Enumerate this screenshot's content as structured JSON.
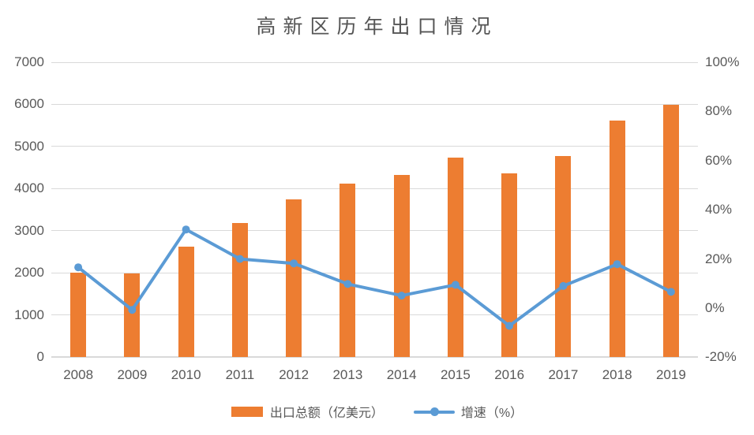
{
  "chart_data": {
    "type": "bar",
    "combo": "bar+line",
    "title": "高新区历年出口情况",
    "categories": [
      "2008",
      "2009",
      "2010",
      "2011",
      "2012",
      "2013",
      "2014",
      "2015",
      "2016",
      "2017",
      "2018",
      "2019"
    ],
    "series": [
      {
        "name": "出口总额（亿美元）",
        "type": "bar",
        "axis": "left",
        "color": "#ED7D31",
        "values": [
          2000,
          1990,
          2630,
          3180,
          3750,
          4120,
          4330,
          4740,
          4370,
          4770,
          5620,
          5990
        ]
      },
      {
        "name": "增速（%）",
        "type": "line",
        "axis": "right",
        "color": "#5B9BD5",
        "values": [
          16.6,
          -0.7,
          32.0,
          20.0,
          18.2,
          9.8,
          5.1,
          9.5,
          -7.2,
          9.0,
          17.9,
          6.6
        ]
      }
    ],
    "left_axis": {
      "min": 0,
      "max": 7000,
      "step": 1000,
      "ticks": [
        "0",
        "1000",
        "2000",
        "3000",
        "4000",
        "5000",
        "6000",
        "7000"
      ]
    },
    "right_axis": {
      "min": -20,
      "max": 100,
      "step": 20,
      "ticks": [
        "-20%",
        "0%",
        "20%",
        "40%",
        "60%",
        "80%",
        "100%"
      ]
    },
    "grid": true,
    "legend_position": "bottom"
  },
  "colors": {
    "bar": "#ED7D31",
    "line": "#5B9BD5",
    "gridline": "#d9d9d9",
    "text": "#595959",
    "background": "#ffffff"
  }
}
